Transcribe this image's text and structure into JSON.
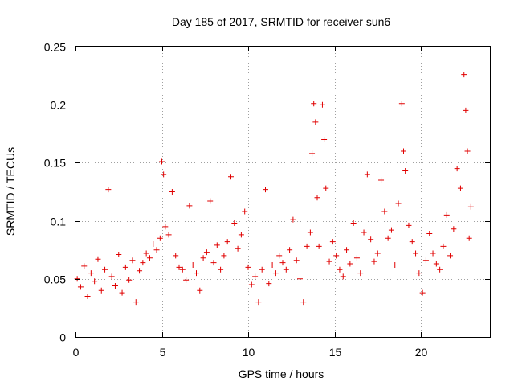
{
  "chart_data": {
    "type": "scatter",
    "title": "Day 185 of 2017, SRMTID for receiver sun6",
    "xlabel": "GPS time / hours",
    "ylabel": "SRMTID / TECUs",
    "xlim": [
      0,
      24
    ],
    "ylim": [
      0,
      0.25
    ],
    "grid": true,
    "marker": "+",
    "color": "#e00000",
    "x_ticks": [
      0,
      5,
      10,
      15,
      20
    ],
    "x_tick_labels": [
      "0",
      "5",
      "10",
      "15",
      "20"
    ],
    "y_ticks": [
      0,
      0.05,
      0.1,
      0.15,
      0.2,
      0.25
    ],
    "y_tick_labels": [
      "0",
      "0.05",
      "0.1",
      "0.15",
      "0.2",
      "0.25"
    ],
    "series": [
      {
        "name": "SRMTID",
        "points": [
          [
            0.1,
            0.05
          ],
          [
            0.3,
            0.043
          ],
          [
            0.5,
            0.061
          ],
          [
            0.7,
            0.035
          ],
          [
            0.9,
            0.055
          ],
          [
            1.1,
            0.048
          ],
          [
            1.3,
            0.067
          ],
          [
            1.5,
            0.04
          ],
          [
            1.7,
            0.058
          ],
          [
            1.9,
            0.127
          ],
          [
            2.1,
            0.052
          ],
          [
            2.3,
            0.044
          ],
          [
            2.5,
            0.071
          ],
          [
            2.7,
            0.038
          ],
          [
            2.9,
            0.06
          ],
          [
            3.1,
            0.049
          ],
          [
            3.3,
            0.066
          ],
          [
            3.5,
            0.03
          ],
          [
            3.7,
            0.057
          ],
          [
            3.9,
            0.064
          ],
          [
            4.1,
            0.072
          ],
          [
            4.3,
            0.068
          ],
          [
            4.5,
            0.08
          ],
          [
            4.7,
            0.075
          ],
          [
            4.9,
            0.085
          ],
          [
            5.0,
            0.151
          ],
          [
            5.1,
            0.14
          ],
          [
            5.2,
            0.095
          ],
          [
            5.4,
            0.088
          ],
          [
            5.6,
            0.125
          ],
          [
            5.8,
            0.07
          ],
          [
            6.0,
            0.06
          ],
          [
            6.2,
            0.058
          ],
          [
            6.4,
            0.049
          ],
          [
            6.6,
            0.113
          ],
          [
            6.8,
            0.062
          ],
          [
            7.0,
            0.055
          ],
          [
            7.2,
            0.04
          ],
          [
            7.4,
            0.068
          ],
          [
            7.6,
            0.073
          ],
          [
            7.8,
            0.117
          ],
          [
            8.0,
            0.064
          ],
          [
            8.2,
            0.079
          ],
          [
            8.4,
            0.058
          ],
          [
            8.6,
            0.07
          ],
          [
            8.8,
            0.082
          ],
          [
            9.0,
            0.138
          ],
          [
            9.2,
            0.098
          ],
          [
            9.4,
            0.076
          ],
          [
            9.6,
            0.088
          ],
          [
            9.8,
            0.108
          ],
          [
            10.0,
            0.06
          ],
          [
            10.2,
            0.045
          ],
          [
            10.4,
            0.052
          ],
          [
            10.6,
            0.03
          ],
          [
            10.8,
            0.058
          ],
          [
            11.0,
            0.127
          ],
          [
            11.2,
            0.046
          ],
          [
            11.4,
            0.062
          ],
          [
            11.6,
            0.055
          ],
          [
            11.8,
            0.07
          ],
          [
            12.0,
            0.064
          ],
          [
            12.2,
            0.058
          ],
          [
            12.4,
            0.075
          ],
          [
            12.6,
            0.101
          ],
          [
            12.8,
            0.066
          ],
          [
            13.0,
            0.05
          ],
          [
            13.2,
            0.03
          ],
          [
            13.4,
            0.078
          ],
          [
            13.6,
            0.09
          ],
          [
            13.7,
            0.158
          ],
          [
            13.8,
            0.201
          ],
          [
            13.9,
            0.185
          ],
          [
            14.0,
            0.12
          ],
          [
            14.1,
            0.078
          ],
          [
            14.3,
            0.2
          ],
          [
            14.4,
            0.17
          ],
          [
            14.5,
            0.128
          ],
          [
            14.7,
            0.065
          ],
          [
            14.9,
            0.082
          ],
          [
            15.1,
            0.07
          ],
          [
            15.3,
            0.058
          ],
          [
            15.5,
            0.052
          ],
          [
            15.7,
            0.075
          ],
          [
            15.9,
            0.063
          ],
          [
            16.1,
            0.098
          ],
          [
            16.3,
            0.068
          ],
          [
            16.5,
            0.055
          ],
          [
            16.7,
            0.09
          ],
          [
            16.9,
            0.14
          ],
          [
            17.1,
            0.084
          ],
          [
            17.3,
            0.065
          ],
          [
            17.5,
            0.072
          ],
          [
            17.7,
            0.135
          ],
          [
            17.9,
            0.108
          ],
          [
            18.1,
            0.085
          ],
          [
            18.3,
            0.092
          ],
          [
            18.5,
            0.062
          ],
          [
            18.7,
            0.115
          ],
          [
            18.9,
            0.201
          ],
          [
            19.0,
            0.16
          ],
          [
            19.1,
            0.143
          ],
          [
            19.3,
            0.096
          ],
          [
            19.5,
            0.082
          ],
          [
            19.7,
            0.072
          ],
          [
            19.9,
            0.055
          ],
          [
            20.1,
            0.038
          ],
          [
            20.3,
            0.066
          ],
          [
            20.5,
            0.089
          ],
          [
            20.7,
            0.072
          ],
          [
            20.9,
            0.063
          ],
          [
            21.1,
            0.058
          ],
          [
            21.3,
            0.078
          ],
          [
            21.5,
            0.105
          ],
          [
            21.7,
            0.07
          ],
          [
            21.9,
            0.093
          ],
          [
            22.1,
            0.145
          ],
          [
            22.3,
            0.128
          ],
          [
            22.5,
            0.226
          ],
          [
            22.6,
            0.195
          ],
          [
            22.7,
            0.16
          ],
          [
            22.8,
            0.085
          ],
          [
            22.9,
            0.112
          ]
        ]
      }
    ]
  }
}
